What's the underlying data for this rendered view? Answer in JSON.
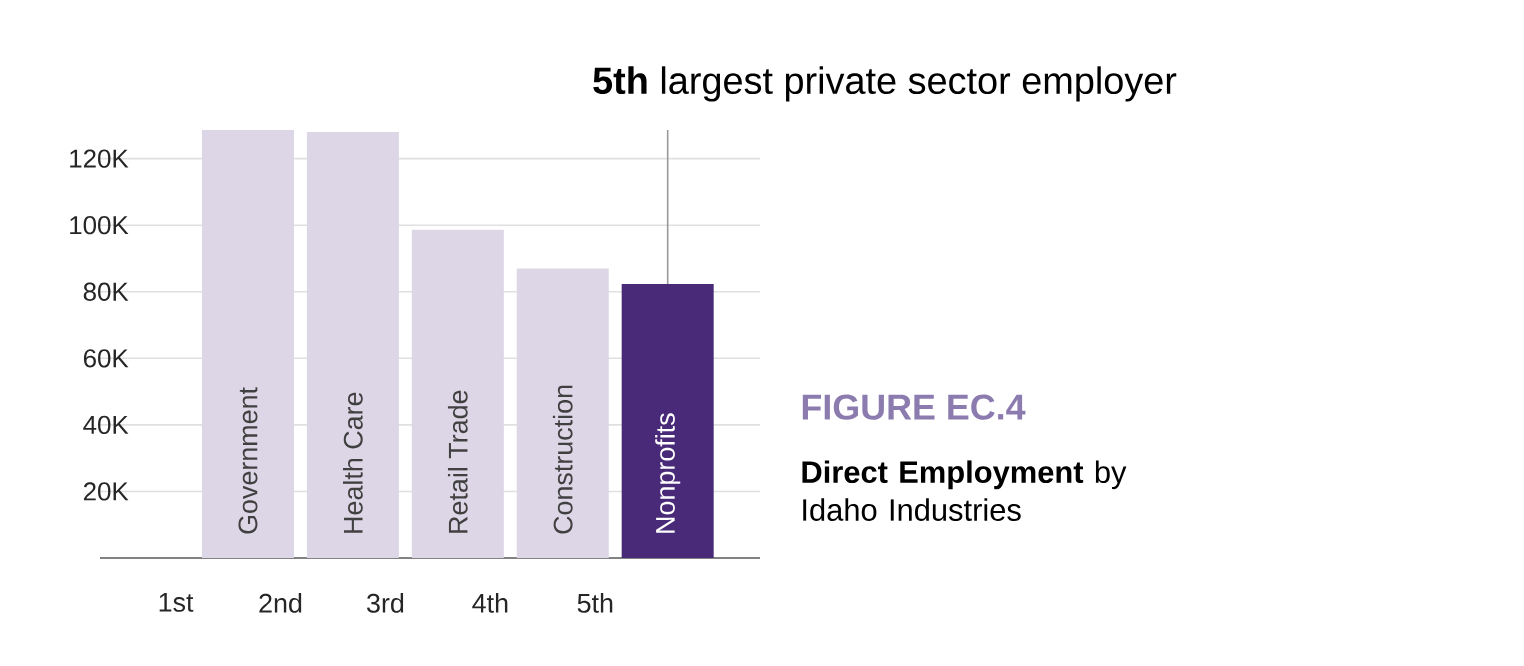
{
  "chart_data": {
    "type": "bar",
    "title": "FIGURE EC.4",
    "subtitle": "**Direct Employment** by Idaho Industries",
    "categories": [
      "Government",
      "Health Care",
      "Retail Trade",
      "Construction",
      "Nonprofits"
    ],
    "values": [
      128.6,
      128,
      98.6,
      87,
      82.3
    ],
    "colors": [
      "#dcd6e6",
      "#dcd6e6",
      "#dcd6e6",
      "#dcd6e6",
      "#492a78"
    ],
    "ylim": [
      0,
      128.6
    ],
    "yticks": [
      {
        "value": 20,
        "label": "20K"
      },
      {
        "value": 40,
        "label": "40K"
      },
      {
        "value": 60,
        "label": "60K"
      },
      {
        "value": 80,
        "label": "80K"
      },
      {
        "value": 100,
        "label": "100K"
      },
      {
        "value": 120,
        "label": "120K"
      }
    ],
    "grid": "y",
    "annotations": [
      {
        "text": "**5th** largest private sector employer",
        "x": "Nonprofits",
        "y": 82.3
      },
      "1st",
      "2nd",
      "3rd",
      "4th",
      "5th"
    ]
  }
}
